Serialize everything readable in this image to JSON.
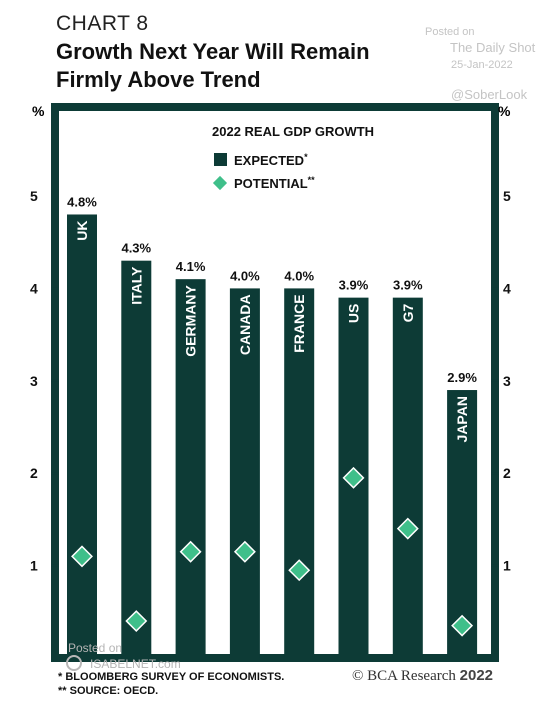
{
  "header": {
    "chart_number": "CHART 8",
    "title_line1": "Growth Next Year Will Remain",
    "title_line2": "Firmly Above Trend"
  },
  "watermarks": {
    "posted_on": "Posted on",
    "source_name": "The Daily Shot",
    "date": "25-Jan-2022",
    "handle": "@SoberLook",
    "posted_on_2": "Posted on",
    "site": "ISABELNET.com"
  },
  "footnotes": {
    "note1": "BLOOMBERG SURVEY OF ECONOMISTS.",
    "note2": "SOURCE: OECD.",
    "mark1": "*",
    "mark2": "**"
  },
  "brand": {
    "copyright": "© BCA Research",
    "year": "2022"
  },
  "colors": {
    "bar": "#0d3b36",
    "marker": "#3fbf8a",
    "frame": "#0d3b36",
    "background": "#ffffff"
  },
  "chart_data": {
    "type": "bar",
    "title": "2022 REAL GDP GROWTH",
    "categories": [
      "UK",
      "ITALY",
      "GERMANY",
      "CANADA",
      "FRANCE",
      "US",
      "G7",
      "JAPAN"
    ],
    "series": [
      {
        "name": "EXPECTED",
        "mark": "*",
        "values": [
          4.8,
          4.3,
          4.1,
          4.0,
          4.0,
          3.9,
          3.9,
          2.9
        ]
      },
      {
        "name": "POTENTIAL",
        "mark": "**",
        "values": [
          1.1,
          0.4,
          1.15,
          1.15,
          0.95,
          1.95,
          1.4,
          0.35
        ]
      }
    ],
    "data_labels": [
      "4.8%",
      "4.3%",
      "4.1%",
      "4.0%",
      "4.0%",
      "3.9%",
      "3.9%",
      "2.9%"
    ],
    "y_ticks": [
      "1",
      "2",
      "3",
      "4",
      "5"
    ],
    "y_unit_left": "%",
    "y_unit_right": "%",
    "ylim": [
      0,
      5.9
    ],
    "legend_placement": "top-center",
    "grid": false
  }
}
